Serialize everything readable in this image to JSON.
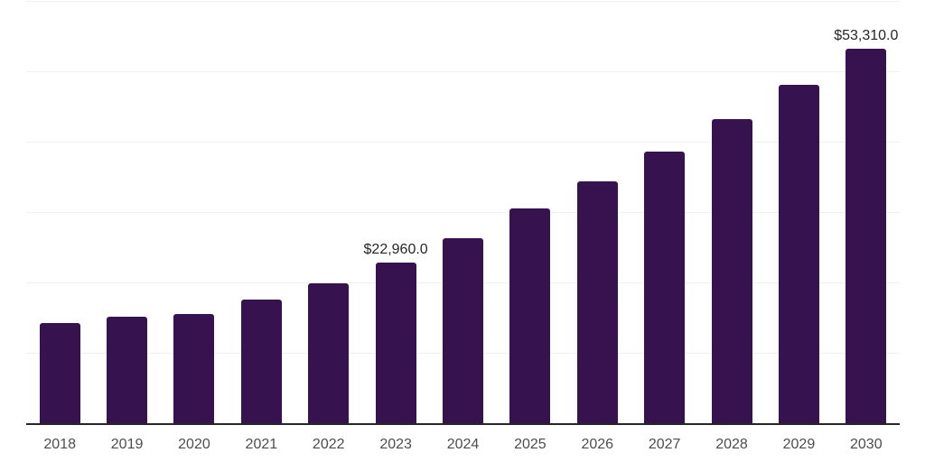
{
  "chart_data": {
    "type": "bar",
    "title": "",
    "xlabel": "",
    "ylabel": "",
    "categories": [
      "2018",
      "2019",
      "2020",
      "2021",
      "2022",
      "2023",
      "2024",
      "2025",
      "2026",
      "2027",
      "2028",
      "2029",
      "2030"
    ],
    "values": [
      14400,
      15300,
      15700,
      17700,
      20000,
      22960,
      26450,
      30700,
      34500,
      38700,
      43300,
      48200,
      53310
    ],
    "data_labels": {
      "2023": "$22,960.0",
      "2030": "$53,310.0"
    },
    "ylim": [
      0,
      60000
    ],
    "grid_interval": 10000,
    "grid": "on",
    "legend": "none",
    "y_axis_labels": "none",
    "colors": {
      "bar": "#36124f",
      "grid": "#f0f0f0",
      "axis": "#262626",
      "tick_label": "#4d4d4d",
      "data_label": "#262626",
      "background": "#ffffff"
    }
  }
}
